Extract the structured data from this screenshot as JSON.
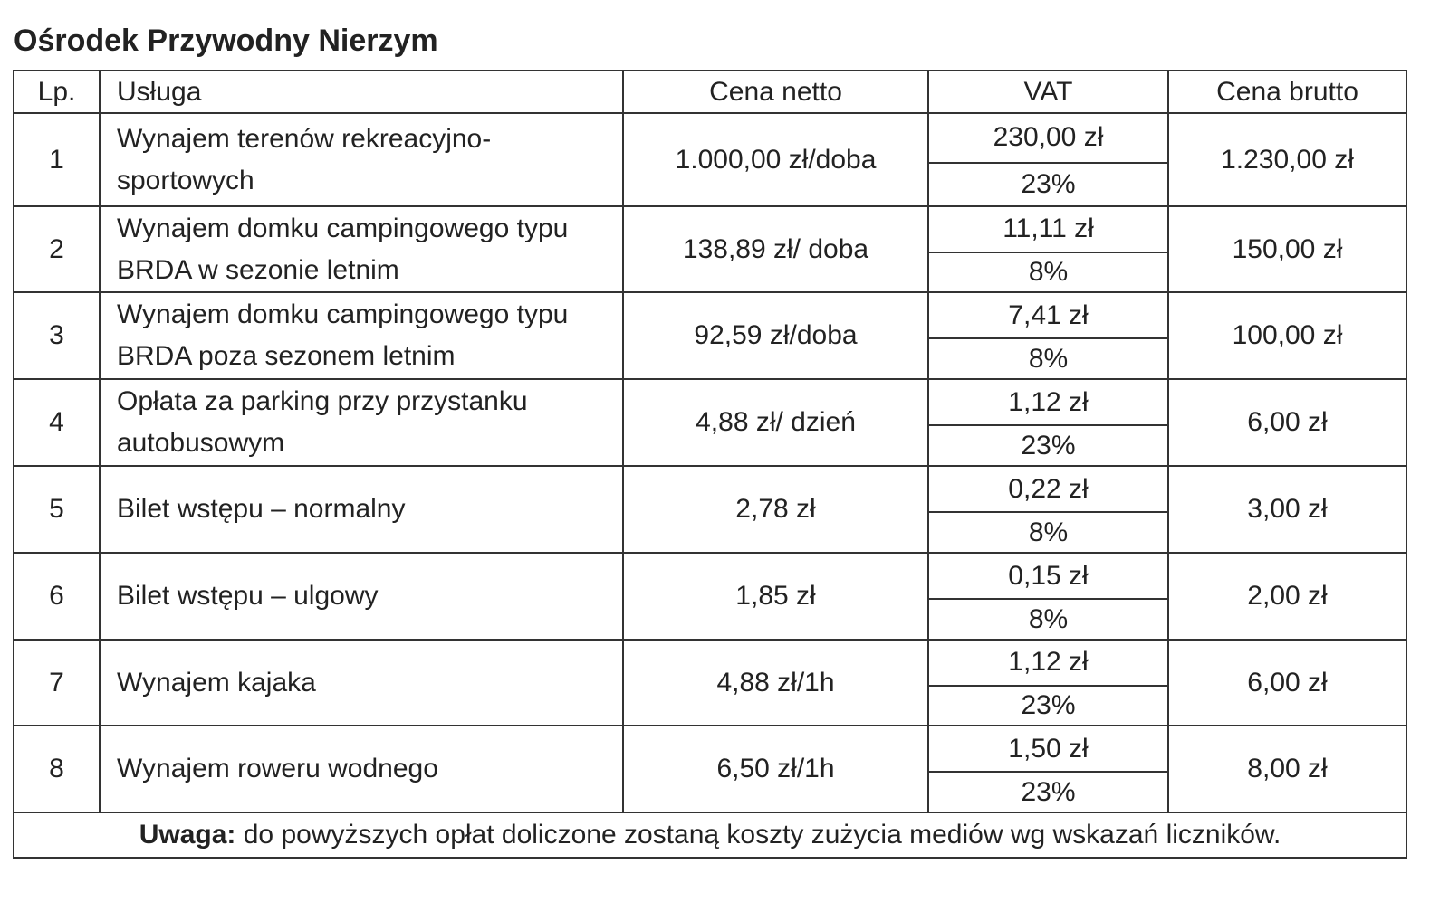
{
  "title": "Ośrodek Przywodny Nierzym",
  "table": {
    "header": [
      "Lp.",
      "Usługa",
      "Cena netto",
      "VAT",
      "Cena brutto"
    ],
    "rows": [
      {
        "lp": "1",
        "service": "Wynajem terenów rekreacyjno-sportowych",
        "net": "1.000,00 zł/doba",
        "vat_amount": "230,00 zł",
        "vat_rate": "23%",
        "gross": "1.230,00 zł"
      },
      {
        "lp": "2",
        "service": "Wynajem domku campingowego typu BRDA w sezonie letnim",
        "net": "138,89 zł/ doba",
        "vat_amount": "11,11 zł",
        "vat_rate": "8%",
        "gross": "150,00 zł"
      },
      {
        "lp": "3",
        "service": "Wynajem domku campingowego typu BRDA poza sezonem letnim",
        "net": "92,59 zł/doba",
        "vat_amount": "7,41 zł",
        "vat_rate": "8%",
        "gross": "100,00 zł"
      },
      {
        "lp": "4",
        "service": "Opłata za parking przy przystanku autobusowym",
        "net": "4,88 zł/ dzień",
        "vat_amount": "1,12 zł",
        "vat_rate": "23%",
        "gross": "6,00 zł"
      },
      {
        "lp": "5",
        "service": "Bilet wstępu – normalny",
        "net": "2,78 zł",
        "vat_amount": "0,22 zł",
        "vat_rate": "8%",
        "gross": "3,00 zł"
      },
      {
        "lp": "6",
        "service": "Bilet wstępu – ulgowy",
        "net": "1,85 zł",
        "vat_amount": "0,15 zł",
        "vat_rate": "8%",
        "gross": "2,00 zł"
      },
      {
        "lp": "7",
        "service": "Wynajem kajaka",
        "net": "4,88 zł/1h",
        "vat_amount": "1,12 zł",
        "vat_rate": "23%",
        "gross": "6,00 zł"
      },
      {
        "lp": "8",
        "service": "Wynajem roweru wodnego",
        "net": "6,50 zł/1h",
        "vat_amount": "1,50 zł",
        "vat_rate": "23%",
        "gross": "8,00 zł"
      }
    ],
    "note": {
      "label": "Uwaga:",
      "text": "do powyższych opłat doliczone zostaną koszty zużycia mediów wg wskazań liczników."
    }
  }
}
